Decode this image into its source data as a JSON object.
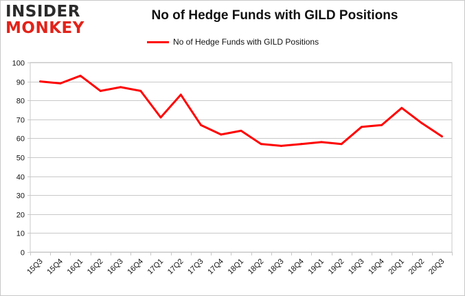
{
  "brand": {
    "logo_top": "INSIDER",
    "logo_bottom": "MONKEY"
  },
  "colors": {
    "series": "#ff0000",
    "grid": "#c8c8c8",
    "logo_red": "#e2231a",
    "logo_dark": "#2b2b2b"
  },
  "chart_data": {
    "type": "line",
    "title": "No of Hedge Funds with GILD Positions",
    "xlabel": "",
    "ylabel": "",
    "legend_position": "top-center",
    "grid": true,
    "ylim": [
      0,
      100
    ],
    "yticks": [
      0,
      10,
      20,
      30,
      40,
      50,
      60,
      70,
      80,
      90,
      100
    ],
    "categories": [
      "15Q3",
      "15Q4",
      "16Q1",
      "16Q2",
      "16Q3",
      "16Q4",
      "17Q1",
      "17Q2",
      "17Q3",
      "17Q4",
      "18Q1",
      "18Q2",
      "18Q3",
      "18Q4",
      "19Q1",
      "19Q2",
      "19Q3",
      "19Q4",
      "20Q1",
      "20Q2",
      "20Q3"
    ],
    "series": [
      {
        "name": "No of Hedge Funds with GILD Positions",
        "values": [
          90,
          89,
          93,
          85,
          87,
          85,
          71,
          83,
          67,
          62,
          64,
          57,
          56,
          57,
          58,
          57,
          66,
          67,
          76,
          68,
          61
        ]
      }
    ]
  }
}
